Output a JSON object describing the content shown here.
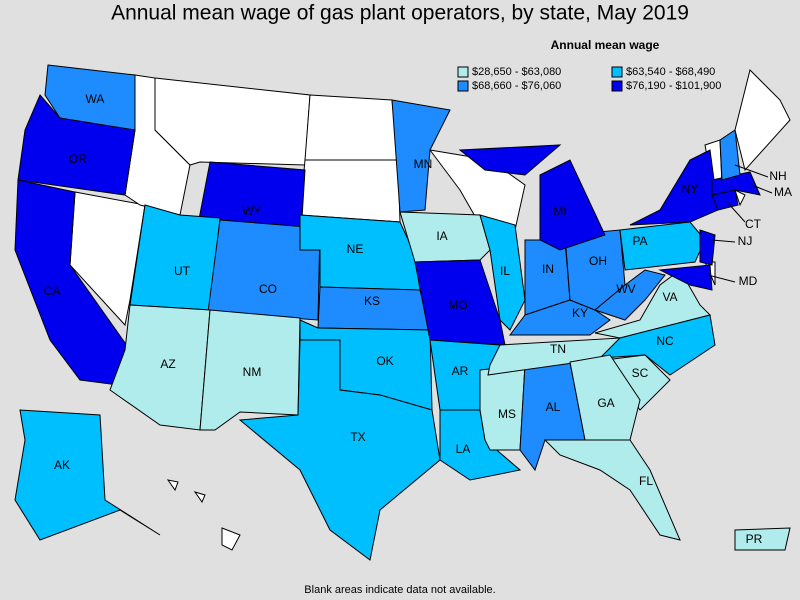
{
  "title": "Annual mean wage of gas plant operators, by state, May 2019",
  "legend": {
    "title": "Annual mean wage",
    "items": [
      {
        "label": "$28,650 - $63,080",
        "color": "#b0ecec"
      },
      {
        "label": "$63,540 - $68,490",
        "color": "#00bfff"
      },
      {
        "label": "$68,660 - $76,060",
        "color": "#1e8cff"
      },
      {
        "label": "$76,190 - $101,900",
        "color": "#0000ee"
      }
    ]
  },
  "states": [
    {
      "label": "WA",
      "bin": 2
    },
    {
      "label": "OR",
      "bin": 3
    },
    {
      "label": "CA",
      "bin": 3
    },
    {
      "label": "WY",
      "bin": 3
    },
    {
      "label": "UT",
      "bin": 1
    },
    {
      "label": "CO",
      "bin": 2
    },
    {
      "label": "AZ",
      "bin": 0
    },
    {
      "label": "NM",
      "bin": 0
    },
    {
      "label": "NE",
      "bin": 1
    },
    {
      "label": "KS",
      "bin": 2
    },
    {
      "label": "OK",
      "bin": 1
    },
    {
      "label": "TX",
      "bin": 1
    },
    {
      "label": "MN",
      "bin": 2
    },
    {
      "label": "IA",
      "bin": 0
    },
    {
      "label": "MO",
      "bin": 3
    },
    {
      "label": "AR",
      "bin": 1
    },
    {
      "label": "LA",
      "bin": 1
    },
    {
      "label": "IL",
      "bin": 1
    },
    {
      "label": "MS",
      "bin": 0
    },
    {
      "label": "AL",
      "bin": 2
    },
    {
      "label": "TN",
      "bin": 0
    },
    {
      "label": "IN",
      "bin": 2
    },
    {
      "label": "KY",
      "bin": 2
    },
    {
      "label": "OH",
      "bin": 2
    },
    {
      "label": "MI",
      "bin": 3
    },
    {
      "label": "WV",
      "bin": 2
    },
    {
      "label": "VA",
      "bin": 0
    },
    {
      "label": "NC",
      "bin": 1
    },
    {
      "label": "SC",
      "bin": 0
    },
    {
      "label": "GA",
      "bin": 0
    },
    {
      "label": "FL",
      "bin": 0
    },
    {
      "label": "PA",
      "bin": 1
    },
    {
      "label": "NY",
      "bin": 3
    },
    {
      "label": "NJ",
      "bin": 3
    },
    {
      "label": "MD",
      "bin": 3
    },
    {
      "label": "CT",
      "bin": 3
    },
    {
      "label": "MA",
      "bin": 3
    },
    {
      "label": "NH",
      "bin": 2
    },
    {
      "label": "AK",
      "bin": 1
    },
    {
      "label": "PR",
      "bin": 0
    }
  ],
  "note": "Blank areas indicate data not available."
}
